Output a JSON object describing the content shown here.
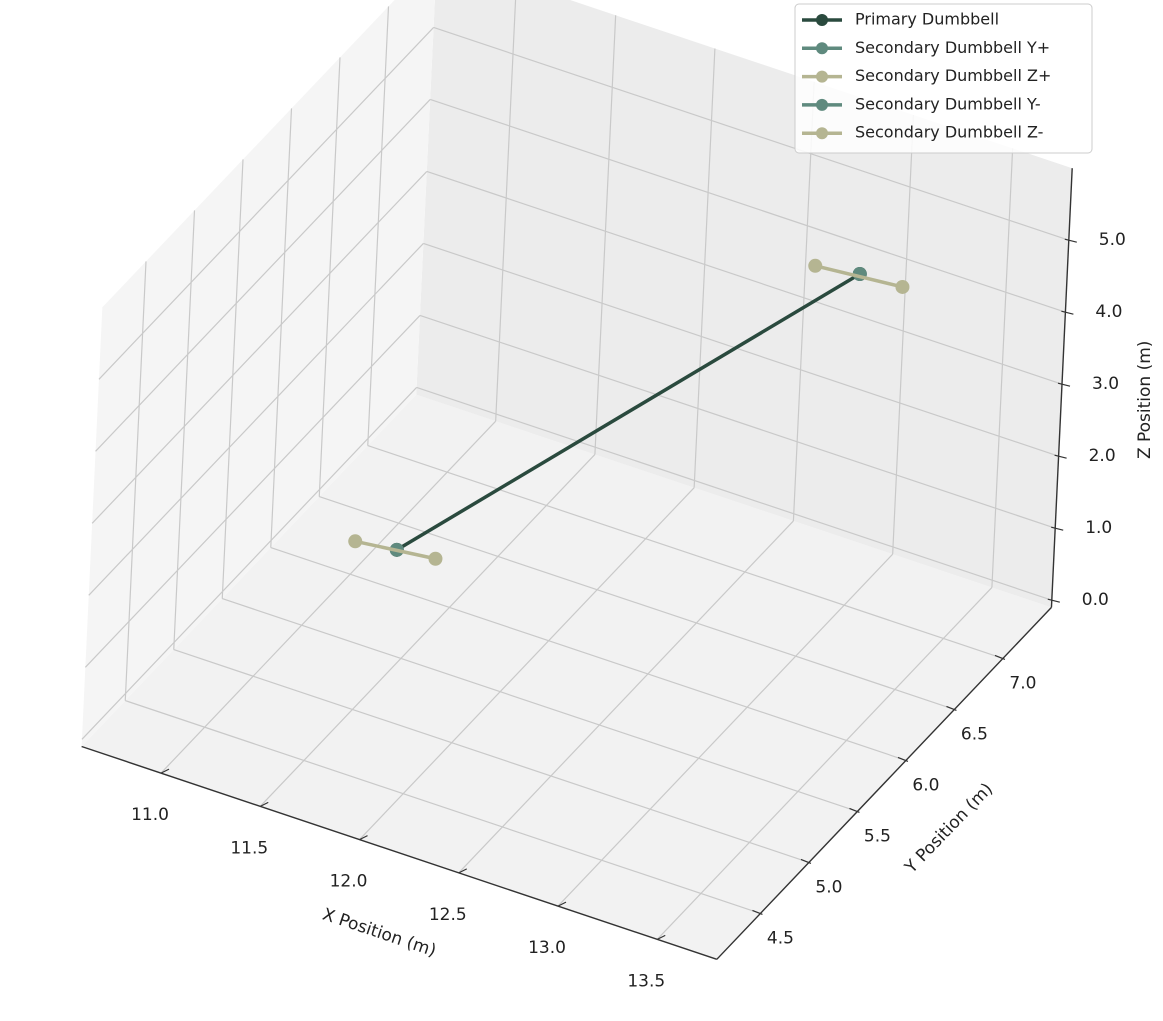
{
  "chart_data": {
    "type": "line3d",
    "xlabel": "X Position (m)",
    "ylabel": "Y Position (m)",
    "zlabel": "Z Position (m)",
    "xlim": [
      10.6,
      13.8
    ],
    "ylim": [
      4.05,
      7.5
    ],
    "zlim": [
      -0.1,
      6.0
    ],
    "xticks": [
      {
        "value": 11,
        "label": "11.0"
      },
      {
        "value": 11.5,
        "label": "11.5"
      },
      {
        "value": 12,
        "label": "12.0"
      },
      {
        "value": 12.5,
        "label": "12.5"
      },
      {
        "value": 13,
        "label": "13.0"
      },
      {
        "value": 13.5,
        "label": "13.5"
      }
    ],
    "yticks": [
      {
        "value": 4.5,
        "label": "4.5"
      },
      {
        "value": 5,
        "label": "5.0"
      },
      {
        "value": 5.5,
        "label": "5.5"
      },
      {
        "value": 6,
        "label": "6.0"
      },
      {
        "value": 6.5,
        "label": "6.5"
      },
      {
        "value": 7,
        "label": "7.0"
      }
    ],
    "zticks": [
      {
        "value": 0,
        "label": "0.0"
      },
      {
        "value": 1,
        "label": "1.0"
      },
      {
        "value": 2,
        "label": "2.0"
      },
      {
        "value": 3,
        "label": "3.0"
      },
      {
        "value": 4,
        "label": "4.0"
      },
      {
        "value": 5,
        "label": "5.0"
      }
    ],
    "grid": true,
    "legend": "upper right",
    "series": [
      {
        "name": "Primary Dumbbell",
        "color": "#2a4a3e",
        "x": [
          11.5,
          13.0
        ],
        "y": [
          5.4,
          7.0
        ],
        "z": [
          1.55,
          4.5
        ]
      },
      {
        "name": "Secondary Dumbbell Y+",
        "color": "#5f8a7e",
        "x": [
          11.5
        ],
        "y": [
          5.4
        ],
        "z": [
          1.55
        ]
      },
      {
        "name": "Secondary Dumbbell Z+",
        "color": "#b5b592",
        "x": [
          11.31,
          11.68
        ],
        "y": [
          5.36,
          5.43
        ],
        "z": [
          1.55,
          1.55
        ]
      },
      {
        "name": "Secondary Dumbbell Y-",
        "color": "#5f8a7e",
        "x": [
          13.0
        ],
        "y": [
          7.0
        ],
        "z": [
          4.5
        ]
      },
      {
        "name": "Secondary Dumbbell Z-",
        "color": "#b5b592",
        "x": [
          12.8,
          13.21
        ],
        "y": [
          6.95,
          7.01
        ],
        "z": [
          4.5,
          4.5
        ]
      }
    ]
  }
}
